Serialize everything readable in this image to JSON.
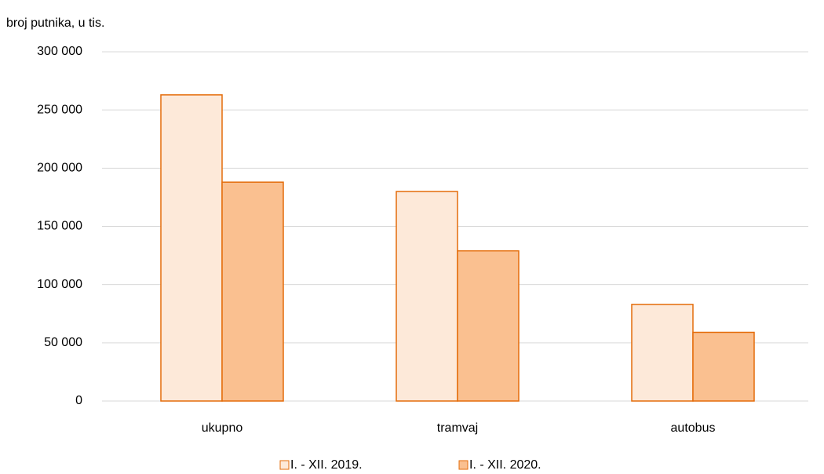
{
  "chart_data": {
    "type": "bar",
    "y_label": "broj putnika, u tis.",
    "categories": [
      "ukupno",
      "tramvaj",
      "autobus"
    ],
    "series": [
      {
        "name": "I. - XII. 2019.",
        "color": "#fde9d9",
        "values": [
          263000,
          180000,
          83000
        ]
      },
      {
        "name": "I. - XII. 2020.",
        "color": "#fac090",
        "values": [
          188000,
          129000,
          59000
        ]
      }
    ],
    "edgecolor": "#e46c0a",
    "ylim": [
      0,
      300000
    ],
    "yticks": [
      0,
      {
        "value": 50000,
        "label": "50 000"
      },
      {
        "value": 100000,
        "label": "100 000"
      },
      {
        "value": 150000,
        "label": "150 000"
      },
      {
        "value": 200000,
        "label": "200 000"
      },
      {
        "value": 250000,
        "label": "250 000"
      },
      {
        "value": 300000,
        "label": "300 000"
      }
    ],
    "grid": true,
    "legend": "bottom"
  }
}
